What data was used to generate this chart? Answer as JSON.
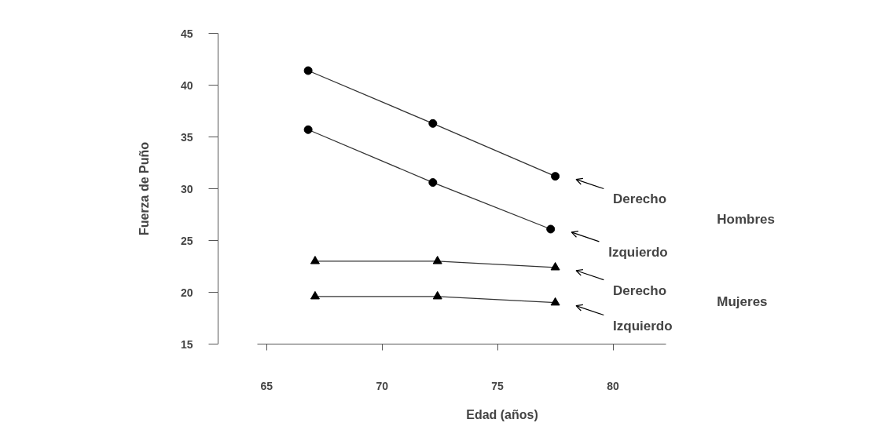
{
  "chart_data": {
    "type": "line",
    "xlabel": "Edad (años)",
    "ylabel": "Fuerza de Puño",
    "xlim": [
      64.6,
      82.3
    ],
    "xticks": [
      65,
      70,
      75,
      80
    ],
    "ylim": [
      15,
      45
    ],
    "yticks": [
      15,
      20,
      25,
      30,
      35,
      40,
      45
    ],
    "grid": false,
    "legend": "right",
    "line_style": "solid",
    "series": [
      {
        "name": "Derecho",
        "color": "#000000",
        "marker": "circle",
        "x": [
          66.8,
          72.2,
          77.5
        ],
        "values": [
          41.4,
          36.3,
          31.2
        ]
      },
      {
        "name": "Izquierdo",
        "color": "#000000",
        "marker": "circle",
        "x": [
          66.8,
          72.2,
          77.3
        ],
        "values": [
          35.7,
          30.6,
          26.1
        ]
      },
      {
        "name": "Derecho",
        "color": "#000000",
        "marker": "triangle",
        "x": [
          67.1,
          72.4,
          77.5
        ],
        "values": [
          23.0,
          23.0,
          22.4
        ]
      },
      {
        "name": "Izquierdo",
        "color": "#000000",
        "marker": "triangle",
        "x": [
          67.1,
          72.4,
          77.5
        ],
        "values": [
          19.6,
          19.6,
          19.0
        ]
      }
    ],
    "annotations": [
      "Hombres",
      "Mujeres"
    ]
  }
}
